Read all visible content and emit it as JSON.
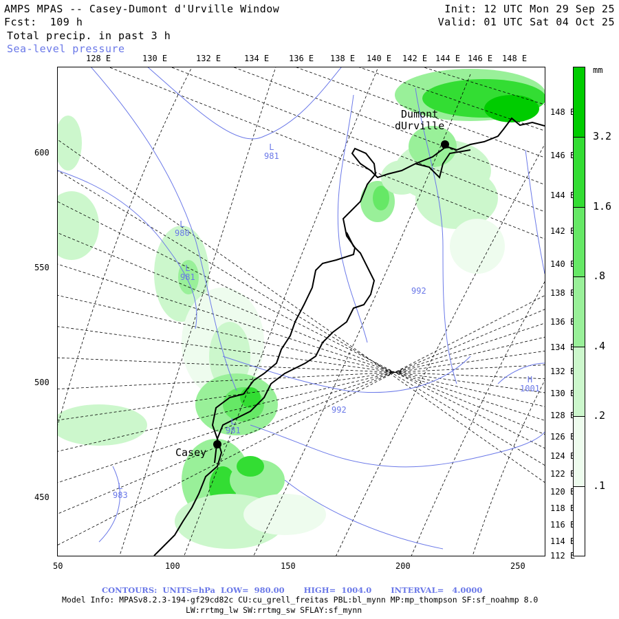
{
  "header": {
    "title": "AMPS MPAS -- Casey-Dumont d'Urville Window",
    "fcst": "Fcst:  109 h",
    "field": "Total precip. in past 3 h",
    "overlay": "Sea-level pressure",
    "init": "Init: 12 UTC Mon 29 Sep 25",
    "valid": "Valid: 01 UTC Sat 04 Oct 25"
  },
  "top_lon_labels": [
    "128 E",
    "130 E",
    "132 E",
    "134 E",
    "136 E",
    "138 E",
    "140 E",
    "142 E",
    "144 E",
    "146 E",
    "148 E"
  ],
  "right_lon_labels": [
    "148 E",
    "146 E",
    "144 E",
    "142 E",
    "140 E",
    "138 E",
    "136 E",
    "134 E",
    "132 E",
    "130 E",
    "128 E",
    "126 E",
    "124 E",
    "122 E",
    "120 E",
    "118 E",
    "116 E",
    "114 E",
    "112 E"
  ],
  "y_ticks": [
    "600",
    "550",
    "500",
    "450"
  ],
  "x_ticks": [
    "50",
    "100",
    "150",
    "200",
    "250"
  ],
  "colorbar": {
    "unit": "mm",
    "labels": [
      "3.2",
      "1.6",
      ".8",
      ".4",
      ".2",
      ".1"
    ],
    "colors": [
      "#00cc00",
      "#33dd33",
      "#66e866",
      "#99f099",
      "#ccf7cc",
      "#eefcee",
      "#ffffff"
    ]
  },
  "stations": {
    "dumont": "Dumont\ndUrville",
    "casey": "Casey"
  },
  "pressure_labels": [
    {
      "letter": "L",
      "value": "981"
    },
    {
      "letter": "L",
      "value": "980"
    },
    {
      "letter": "L",
      "value": "981"
    },
    {
      "letter": "",
      "value": "992"
    },
    {
      "letter": "H",
      "value": "1001"
    },
    {
      "letter": "",
      "value": "992"
    },
    {
      "letter": "L",
      "value": "981"
    },
    {
      "letter": "L",
      "value": "983"
    }
  ],
  "footer": {
    "contours": "CONTOURS:  UNITS=hPa  LOW=  980.00       HIGH=  1004.0       INTERVAL=   4.0000",
    "model_info": "Model Info: MPASv8.2.3-194-gf29cd82c CU:cu_grell_freitas PBL:bl_mynn MP:mp_thompson SF:sf_noahmp 8.0",
    "model_info2": "LW:rrtmg_lw SW:rrtmg_sw SFLAY:sf_mynn"
  }
}
